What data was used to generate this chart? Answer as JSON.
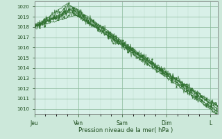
{
  "title": "",
  "xlabel": "Pression niveau de la mer( hPa )",
  "ylabel": "",
  "bg_color": "#cce8da",
  "plot_bg_color": "#d8f0e8",
  "grid_major_color": "#8ab89a",
  "grid_minor_color": "#b8d8c8",
  "line_color": "#2d6e2d",
  "ylim": [
    1009.5,
    1020.5
  ],
  "yticks": [
    1010,
    1011,
    1012,
    1013,
    1014,
    1015,
    1016,
    1017,
    1018,
    1019,
    1020
  ],
  "x_day_labels": [
    "Jeu",
    "Ven",
    "Sam",
    "Dim",
    "L"
  ],
  "x_day_positions": [
    0,
    24,
    48,
    72,
    96
  ],
  "total_hours": 100,
  "num_lines": 8
}
